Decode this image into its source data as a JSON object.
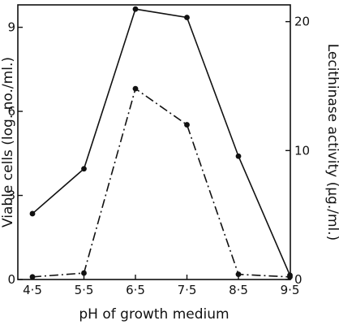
{
  "chart_data": {
    "type": "line",
    "x": [
      4.5,
      5.5,
      6.5,
      7.5,
      8.5,
      9.5
    ],
    "xtick_labels": [
      "4·5",
      "5·5",
      "6·5",
      "7·5",
      "8·5",
      "9·5"
    ],
    "xlabel": "pH of growth medium",
    "ylabel": "Viable cells (log. no./ml.)",
    "y2label": "Lecithinase activity (μg./ml.)",
    "ylim": [
      0,
      9.8
    ],
    "y2lim": [
      0,
      21.3
    ],
    "yticks": [
      0,
      3,
      6,
      9
    ],
    "ytick_labels": [
      "0",
      "3",
      "6",
      "9"
    ],
    "y2ticks": [
      0,
      10,
      20
    ],
    "y2tick_labels": [
      "0",
      "10",
      "20"
    ],
    "grid": false,
    "series": [
      {
        "axis": "left",
        "style": "solid",
        "values": [
          2.35,
          3.95,
          9.65,
          9.35,
          4.4,
          0.15
        ]
      },
      {
        "axis": "right",
        "style": "dash-dot",
        "values": [
          0.2,
          0.5,
          14.8,
          12.0,
          0.4,
          0.2
        ]
      }
    ],
    "colors": {
      "line": "#111111",
      "axis": "#111111"
    }
  }
}
